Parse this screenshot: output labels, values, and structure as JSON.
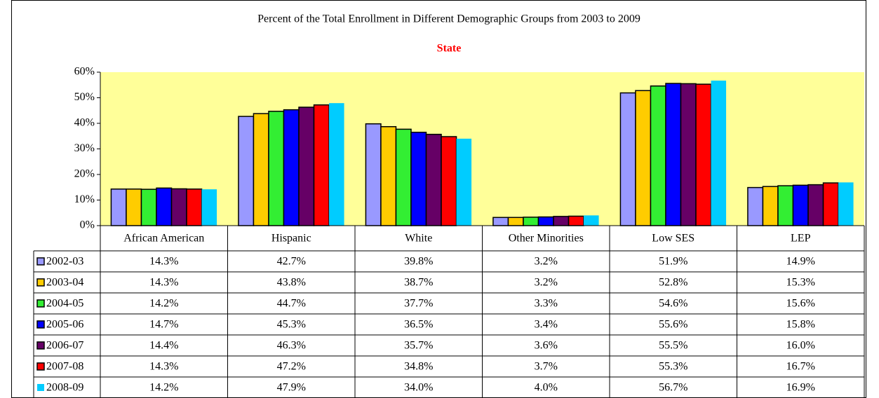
{
  "chart_data": {
    "type": "bar",
    "title": "Percent of the Total Enrollment in Different Demographic Groups from 2003 to 2009",
    "subtitle": "State",
    "categories": [
      "African American",
      "Hispanic",
      "White",
      "Other Minorities",
      "Low SES",
      "LEP"
    ],
    "series": [
      {
        "name": "2002-03",
        "color": "#9999ff",
        "values": [
          14.3,
          42.7,
          39.8,
          3.2,
          51.9,
          14.9
        ],
        "value_labels": [
          "14.3%",
          "42.7%",
          "39.8%",
          "3.2%",
          "51.9%",
          "14.9%"
        ]
      },
      {
        "name": "2003-04",
        "color": "#ffcc00",
        "values": [
          14.3,
          43.8,
          38.7,
          3.2,
          52.8,
          15.3
        ],
        "value_labels": [
          "14.3%",
          "43.8%",
          "38.7%",
          "3.2%",
          "52.8%",
          "15.3%"
        ]
      },
      {
        "name": "2004-05",
        "color": "#33ee33",
        "values": [
          14.2,
          44.7,
          37.7,
          3.3,
          54.6,
          15.6
        ],
        "value_labels": [
          "14.2%",
          "44.7%",
          "37.7%",
          "3.3%",
          "54.6%",
          "15.6%"
        ]
      },
      {
        "name": "2005-06",
        "color": "#0000ff",
        "values": [
          14.7,
          45.3,
          36.5,
          3.4,
          55.6,
          15.8
        ],
        "value_labels": [
          "14.7%",
          "45.3%",
          "36.5%",
          "3.4%",
          "55.6%",
          "15.8%"
        ]
      },
      {
        "name": "2006-07",
        "color": "#660066",
        "values": [
          14.4,
          46.3,
          35.7,
          3.6,
          55.5,
          16.0
        ],
        "value_labels": [
          "14.4%",
          "46.3%",
          "35.7%",
          "3.6%",
          "55.5%",
          "16.0%"
        ]
      },
      {
        "name": "2007-08",
        "color": "#ff0000",
        "values": [
          14.3,
          47.2,
          34.8,
          3.7,
          55.3,
          16.7
        ],
        "value_labels": [
          "14.3%",
          "47.2%",
          "34.8%",
          "3.7%",
          "55.3%",
          "16.7%"
        ]
      },
      {
        "name": "2008-09",
        "color": "#00ccff",
        "values": [
          14.2,
          47.9,
          34.0,
          4.0,
          56.7,
          16.9
        ],
        "value_labels": [
          "14.2%",
          "47.9%",
          "34.0%",
          "4.0%",
          "56.7%",
          "16.9%"
        ]
      }
    ],
    "ylim": [
      0,
      60
    ],
    "yticks": [
      {
        "value": 0,
        "label": "0%"
      },
      {
        "value": 10,
        "label": "10%"
      },
      {
        "value": 20,
        "label": "20%"
      },
      {
        "value": 30,
        "label": "30%"
      },
      {
        "value": 40,
        "label": "40%"
      },
      {
        "value": 50,
        "label": "50%"
      },
      {
        "value": 60,
        "label": "60%"
      }
    ],
    "plot_background": "#ffff99"
  }
}
